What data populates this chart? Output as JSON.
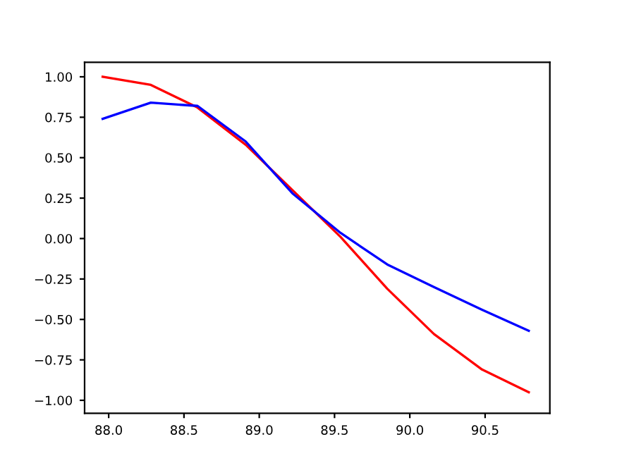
{
  "chart_data": {
    "type": "line",
    "x": [
      87.96,
      88.28,
      88.59,
      88.91,
      89.22,
      89.54,
      89.85,
      90.16,
      90.48,
      90.79
    ],
    "series": [
      {
        "color": "#ff0000",
        "values": [
          1.0,
          0.95,
          0.81,
          0.58,
          0.3,
          0.01,
          -0.31,
          -0.59,
          -0.81,
          -0.95
        ]
      },
      {
        "color": "#0000ff",
        "values": [
          0.74,
          0.84,
          0.82,
          0.6,
          0.28,
          0.035,
          -0.16,
          -0.3,
          -0.44,
          -0.57
        ]
      }
    ],
    "xlim": [
      87.84,
      90.93
    ],
    "xticks": [
      {
        "value": 88.0,
        "label": "88.0"
      },
      {
        "value": 88.5,
        "label": "88.5"
      },
      {
        "value": 89.0,
        "label": "89.0"
      },
      {
        "value": 89.5,
        "label": "89.5"
      },
      {
        "value": 90.0,
        "label": "90.0"
      },
      {
        "value": 90.5,
        "label": "90.5"
      }
    ],
    "ylim": [
      -1.08,
      1.09
    ],
    "yticks": [
      {
        "value": -1.0,
        "label": "−1.00"
      },
      {
        "value": -0.75,
        "label": "−0.75"
      },
      {
        "value": -0.5,
        "label": "−0.50"
      },
      {
        "value": -0.25,
        "label": "−0.25"
      },
      {
        "value": 0.0,
        "label": "0.00"
      },
      {
        "value": 0.25,
        "label": "0.25"
      },
      {
        "value": 0.5,
        "label": "0.50"
      },
      {
        "value": 0.75,
        "label": "0.75"
      },
      {
        "value": 1.0,
        "label": "1.00"
      }
    ]
  }
}
